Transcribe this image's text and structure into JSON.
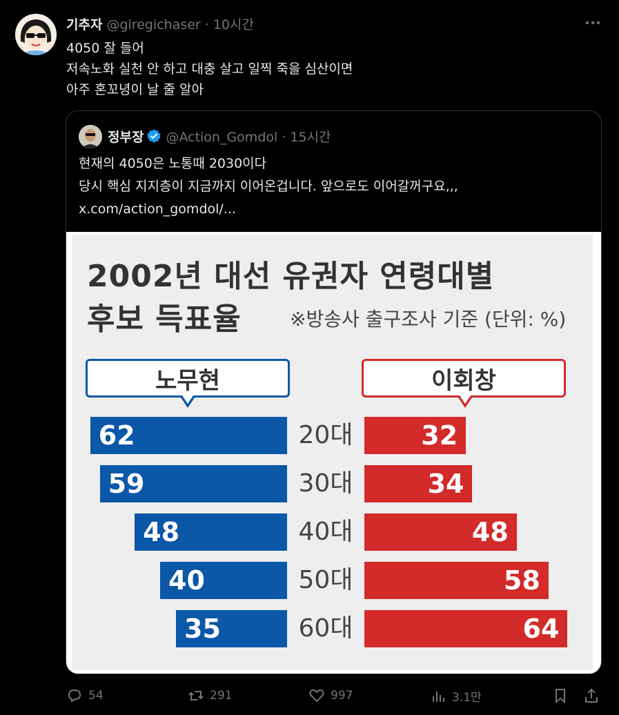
{
  "tweet": {
    "author_name": "기추자",
    "handle_time": "@giregichaser · 10시간",
    "more_icon": "more-horizontal-icon",
    "lines": [
      "4050 잘 들어",
      "저속노화 실천 안 하고 대충 살고 일찍 죽을 심산이면",
      "아주 혼꼬녕이 날 줄 알아"
    ]
  },
  "quote": {
    "author_name": "정부장",
    "handle_time": "@Action_Gomdol · 15시간",
    "verified_color": "#1d9bf0",
    "lines": [
      "현재의 4050은 노통때 2030이다",
      "당시 핵심 지지층이 지금까지 이어온겁니다.  앞으로도 이어갈꺼구요,,,"
    ],
    "link": "x.com/action_gomdol/..."
  },
  "chart_data": {
    "type": "bar",
    "title_line1": "2002년 대선 유권자 연령대별",
    "title_line2": "후보 득표율",
    "subtitle": "※방송사 출구조사 기준 (단위: %)",
    "categories": [
      "20대",
      "30대",
      "40대",
      "50대",
      "60대"
    ],
    "series": [
      {
        "name": "노무현",
        "color": "#0b57a8",
        "values": [
          62,
          59,
          48,
          40,
          35
        ]
      },
      {
        "name": "이회창",
        "color": "#d32a2a",
        "values": [
          32,
          34,
          48,
          58,
          64
        ]
      }
    ]
  },
  "actions": {
    "replies": "54",
    "reposts": "291",
    "likes": "997",
    "views": "3.1만"
  }
}
